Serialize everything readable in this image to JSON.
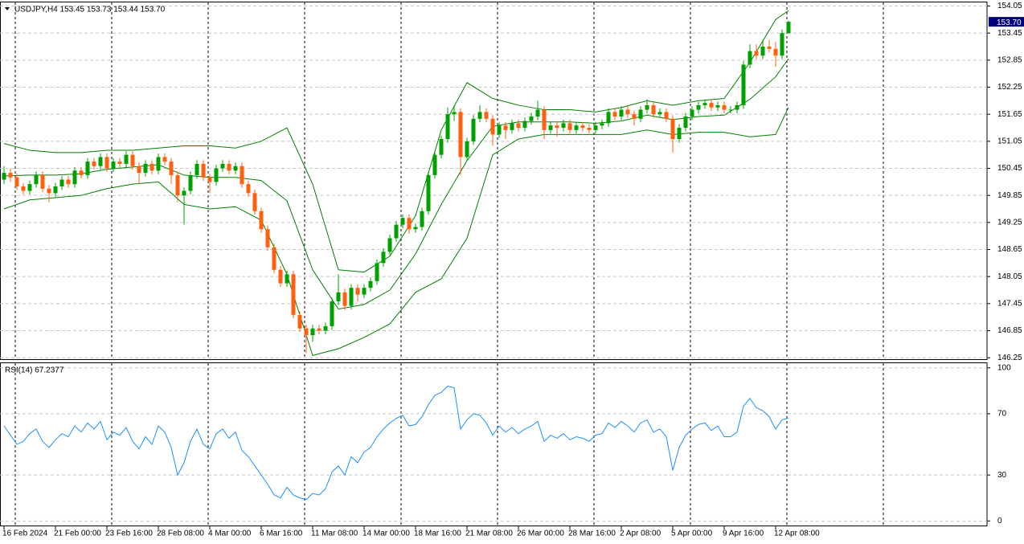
{
  "chart_data": [
    {
      "type": "candlestick",
      "title": "USDJPY,H4  153.45 153.73 153.44 153.70",
      "categories": [
        "16 Feb 2024",
        null,
        null,
        null,
        null,
        null,
        null,
        null,
        "21 Feb 00:00",
        null,
        null,
        null,
        null,
        null,
        null,
        null,
        "23 Feb 16:00",
        null,
        null,
        null,
        null,
        null,
        null,
        null,
        "28 Feb 08:00",
        null,
        null,
        null,
        null,
        null,
        null,
        null,
        "4 Mar 00:00",
        null,
        null,
        null,
        null,
        null,
        null,
        null,
        "6 Mar 16:00",
        null,
        null,
        null,
        null,
        null,
        null,
        null,
        "11 Mar 08:00",
        null,
        null,
        null,
        null,
        null,
        null,
        null,
        "14 Mar 00:00",
        null,
        null,
        null,
        null,
        null,
        null,
        null,
        "18 Mar 16:00",
        null,
        null,
        null,
        null,
        null,
        null,
        null,
        "21 Mar 08:00",
        null,
        null,
        null,
        null,
        null,
        null,
        null,
        "26 Mar 00:00",
        null,
        null,
        null,
        null,
        null,
        null,
        null,
        "28 Mar 16:00",
        null,
        null,
        null,
        null,
        null,
        null,
        null,
        "2 Apr 08:00",
        null,
        null,
        null,
        null,
        null,
        null,
        null,
        "5 Apr 00:00",
        null,
        null,
        null,
        null,
        null,
        null,
        null,
        "9 Apr 16:00",
        null,
        null,
        null,
        null,
        null,
        null,
        null,
        "12 Apr 08:00",
        null,
        null
      ],
      "ohlc": [
        [
          150.2,
          150.5,
          150.1,
          150.35
        ],
        [
          150.35,
          150.45,
          150.15,
          150.25
        ],
        [
          150.25,
          150.33,
          149.97,
          150.05
        ],
        [
          150.05,
          150.13,
          149.87,
          149.95
        ],
        [
          149.95,
          150.18,
          149.87,
          150.1
        ],
        [
          150.1,
          150.38,
          150.02,
          150.3
        ],
        [
          150.3,
          150.38,
          149.92,
          150.0
        ],
        [
          150.0,
          150.08,
          149.7,
          149.9
        ],
        [
          149.9,
          150.13,
          149.82,
          150.05
        ],
        [
          150.05,
          150.28,
          149.97,
          150.2
        ],
        [
          150.2,
          150.28,
          150.02,
          150.1
        ],
        [
          150.1,
          150.48,
          150.02,
          150.4
        ],
        [
          150.4,
          150.48,
          150.22,
          150.3
        ],
        [
          150.3,
          150.68,
          150.22,
          150.6
        ],
        [
          150.6,
          150.68,
          150.42,
          150.5
        ],
        [
          150.5,
          150.78,
          150.42,
          150.7
        ],
        [
          150.7,
          150.78,
          150.37,
          150.45
        ],
        [
          150.45,
          150.68,
          150.37,
          150.6
        ],
        [
          150.6,
          150.68,
          150.47,
          150.55
        ],
        [
          150.55,
          150.83,
          150.47,
          150.75
        ],
        [
          150.75,
          150.83,
          150.42,
          150.5
        ],
        [
          150.5,
          150.58,
          150.1,
          150.35
        ],
        [
          150.35,
          150.63,
          150.27,
          150.55
        ],
        [
          150.55,
          150.63,
          150.32,
          150.4
        ],
        [
          150.4,
          150.78,
          150.32,
          150.7
        ],
        [
          150.7,
          150.78,
          150.52,
          150.6
        ],
        [
          150.6,
          150.68,
          150.1,
          150.3
        ],
        [
          150.3,
          150.38,
          149.7,
          149.85
        ],
        [
          149.85,
          150.03,
          149.2,
          149.95
        ],
        [
          149.95,
          150.38,
          149.87,
          150.3
        ],
        [
          150.3,
          150.63,
          150.22,
          150.55
        ],
        [
          150.55,
          150.63,
          150.17,
          150.25
        ],
        [
          150.25,
          150.33,
          149.9,
          150.15
        ],
        [
          150.15,
          150.53,
          150.07,
          150.45
        ],
        [
          150.45,
          150.63,
          150.37,
          150.55
        ],
        [
          150.55,
          150.63,
          150.32,
          150.4
        ],
        [
          150.4,
          150.58,
          150.32,
          150.5
        ],
        [
          150.5,
          150.58,
          150.02,
          150.1
        ],
        [
          150.1,
          150.18,
          149.82,
          149.9
        ],
        [
          149.9,
          149.98,
          149.42,
          149.5
        ],
        [
          149.5,
          149.58,
          149.02,
          149.1
        ],
        [
          149.1,
          149.18,
          148.62,
          148.7
        ],
        [
          148.7,
          148.78,
          148.12,
          148.2
        ],
        [
          148.2,
          148.28,
          147.82,
          147.9
        ],
        [
          147.9,
          148.18,
          147.82,
          148.1
        ],
        [
          148.1,
          148.18,
          147.12,
          147.2
        ],
        [
          147.2,
          147.28,
          146.82,
          146.9
        ],
        [
          146.9,
          146.98,
          146.35,
          146.75
        ],
        [
          146.75,
          146.98,
          146.6,
          146.9
        ],
        [
          146.9,
          146.98,
          146.77,
          146.85
        ],
        [
          146.85,
          147.03,
          146.77,
          146.95
        ],
        [
          146.95,
          147.58,
          146.87,
          147.5
        ],
        [
          147.5,
          148.1,
          147.42,
          147.7
        ],
        [
          147.7,
          147.78,
          147.3,
          147.4
        ],
        [
          147.4,
          147.88,
          147.32,
          147.8
        ],
        [
          147.8,
          147.88,
          147.5,
          147.65
        ],
        [
          147.65,
          147.88,
          147.57,
          147.8
        ],
        [
          147.8,
          148.03,
          147.72,
          147.95
        ],
        [
          147.95,
          148.43,
          147.87,
          148.35
        ],
        [
          148.35,
          148.68,
          148.27,
          148.6
        ],
        [
          148.6,
          148.98,
          148.52,
          148.9
        ],
        [
          148.9,
          149.28,
          148.82,
          149.2
        ],
        [
          149.2,
          149.43,
          149.12,
          149.35
        ],
        [
          149.35,
          149.43,
          149.0,
          149.1
        ],
        [
          149.1,
          149.23,
          149.02,
          149.15
        ],
        [
          149.15,
          149.58,
          149.07,
          149.5
        ],
        [
          149.5,
          150.38,
          149.42,
          150.3
        ],
        [
          150.3,
          150.83,
          150.22,
          150.75
        ],
        [
          150.75,
          151.18,
          150.67,
          151.1
        ],
        [
          151.1,
          151.8,
          151.02,
          151.65
        ],
        [
          151.65,
          151.85,
          151.5,
          151.7
        ],
        [
          151.7,
          151.78,
          150.3,
          150.7
        ],
        [
          150.7,
          151.13,
          150.62,
          151.05
        ],
        [
          151.05,
          151.63,
          150.97,
          151.55
        ],
        [
          151.55,
          151.85,
          151.47,
          151.7
        ],
        [
          151.7,
          151.78,
          151.47,
          151.55
        ],
        [
          151.55,
          151.63,
          150.95,
          151.2
        ],
        [
          151.2,
          151.48,
          151.12,
          151.4
        ],
        [
          151.4,
          151.48,
          151.1,
          151.3
        ],
        [
          151.3,
          151.53,
          151.22,
          151.45
        ],
        [
          151.45,
          151.53,
          151.27,
          151.35
        ],
        [
          151.35,
          151.58,
          151.27,
          151.5
        ],
        [
          151.5,
          151.68,
          151.42,
          151.6
        ],
        [
          151.6,
          151.95,
          151.52,
          151.75
        ],
        [
          151.75,
          151.83,
          151.1,
          151.3
        ],
        [
          151.3,
          151.48,
          151.22,
          151.4
        ],
        [
          151.4,
          151.48,
          151.15,
          151.35
        ],
        [
          151.35,
          151.53,
          151.27,
          151.45
        ],
        [
          151.45,
          151.53,
          151.22,
          151.3
        ],
        [
          151.3,
          151.48,
          151.22,
          151.4
        ],
        [
          151.4,
          151.48,
          151.27,
          151.35
        ],
        [
          151.35,
          151.43,
          151.22,
          151.3
        ],
        [
          151.3,
          151.48,
          151.22,
          151.4
        ],
        [
          151.4,
          151.53,
          151.32,
          151.45
        ],
        [
          151.45,
          151.78,
          151.37,
          151.7
        ],
        [
          151.7,
          151.78,
          151.52,
          151.6
        ],
        [
          151.6,
          151.83,
          151.52,
          151.75
        ],
        [
          151.75,
          151.83,
          151.57,
          151.65
        ],
        [
          151.65,
          151.73,
          151.4,
          151.55
        ],
        [
          151.55,
          151.83,
          151.47,
          151.75
        ],
        [
          151.75,
          151.98,
          151.67,
          151.85
        ],
        [
          151.85,
          151.93,
          151.57,
          151.65
        ],
        [
          151.65,
          151.78,
          151.57,
          151.7
        ],
        [
          151.7,
          151.78,
          151.47,
          151.55
        ],
        [
          151.55,
          151.63,
          150.8,
          151.1
        ],
        [
          151.1,
          151.43,
          151.02,
          151.35
        ],
        [
          151.35,
          151.68,
          151.27,
          151.6
        ],
        [
          151.6,
          151.83,
          151.52,
          151.75
        ],
        [
          151.75,
          151.93,
          151.67,
          151.85
        ],
        [
          151.85,
          151.98,
          151.77,
          151.9
        ],
        [
          151.9,
          151.98,
          151.72,
          151.8
        ],
        [
          151.8,
          151.93,
          151.72,
          151.85
        ],
        [
          151.85,
          151.93,
          151.67,
          151.75
        ],
        [
          151.75,
          151.83,
          151.67,
          151.75
        ],
        [
          151.75,
          151.93,
          151.67,
          151.85
        ],
        [
          151.85,
          152.83,
          151.77,
          152.75
        ],
        [
          152.75,
          153.2,
          152.67,
          153.05
        ],
        [
          153.05,
          153.2,
          152.87,
          152.95
        ],
        [
          152.95,
          153.3,
          152.87,
          153.15
        ],
        [
          153.15,
          153.3,
          153.02,
          153.1
        ],
        [
          153.1,
          153.25,
          152.7,
          152.95
        ],
        [
          152.95,
          153.53,
          152.87,
          153.45
        ],
        [
          153.45,
          153.73,
          153.44,
          153.7
        ]
      ],
      "up_color": "#00a000",
      "down_color": "#ff6010",
      "overlay": {
        "type": "line",
        "x": [
          0,
          4,
          8,
          12,
          16,
          20,
          24,
          28,
          32,
          36,
          40,
          44,
          48,
          52,
          56,
          60,
          64,
          68,
          72,
          76,
          80,
          84,
          88,
          92,
          96,
          100,
          104,
          108,
          112,
          116,
          120,
          122
        ],
        "series": [
          {
            "color": "#008000",
            "values": [
              151.0,
              150.85,
              150.8,
              150.8,
              150.85,
              150.85,
              150.9,
              150.95,
              150.95,
              150.9,
              151.05,
              151.35,
              150.1,
              148.2,
              148.15,
              148.5,
              149.4,
              151.3,
              152.35,
              152.0,
              151.85,
              151.75,
              151.75,
              151.7,
              151.8,
              151.95,
              151.85,
              151.95,
              152.0,
              152.8,
              153.75,
              153.95
            ]
          },
          {
            "color": "#008000",
            "values": [
              150.28,
              150.3,
              150.3,
              150.33,
              150.43,
              150.48,
              150.53,
              150.3,
              150.25,
              150.25,
              150.18,
              149.73,
              148.2,
              147.33,
              147.43,
              147.75,
              148.55,
              149.65,
              150.62,
              151.38,
              151.48,
              151.48,
              151.48,
              151.45,
              151.5,
              151.63,
              151.53,
              151.6,
              151.63,
              151.98,
              152.48,
              152.88
            ]
          },
          {
            "color": "#008000",
            "values": [
              149.55,
              149.75,
              149.8,
              149.85,
              150.0,
              150.1,
              150.15,
              149.65,
              149.55,
              149.6,
              149.3,
              148.1,
              146.3,
              146.45,
              146.7,
              147.0,
              147.7,
              148.0,
              148.9,
              150.75,
              151.1,
              151.2,
              151.2,
              151.2,
              151.2,
              151.3,
              151.2,
              151.25,
              151.25,
              151.15,
              151.2,
              151.8
            ]
          }
        ]
      },
      "last_price": {
        "value": 153.7,
        "label": "153.70"
      },
      "ylim": [
        146.2,
        154.13
      ],
      "yticks": [
        154.05,
        153.45,
        152.85,
        152.25,
        151.65,
        151.05,
        150.45,
        149.85,
        149.25,
        148.65,
        148.05,
        147.45,
        146.85,
        146.25
      ],
      "grid": true
    },
    {
      "type": "line",
      "title": "RSI(14) 67.2377",
      "color": "#1e90ff",
      "values": [
        62,
        56,
        50,
        52,
        57,
        60,
        52,
        48,
        53,
        57,
        55,
        62,
        58,
        64,
        60,
        65,
        53,
        58,
        56,
        61,
        52,
        47,
        55,
        50,
        62,
        58,
        48,
        30,
        38,
        52,
        60,
        50,
        47,
        57,
        60,
        54,
        58,
        46,
        42,
        36,
        30,
        24,
        17,
        15,
        22,
        17,
        15,
        14,
        18,
        17,
        21,
        32,
        36,
        30,
        42,
        38,
        45,
        48,
        55,
        60,
        64,
        67,
        69,
        62,
        63,
        68,
        76,
        82,
        84,
        88,
        87,
        60,
        66,
        70,
        69,
        64,
        56,
        62,
        58,
        61,
        57,
        60,
        62,
        65,
        52,
        56,
        54,
        57,
        53,
        55,
        54,
        52,
        56,
        57,
        64,
        61,
        65,
        62,
        58,
        64,
        66,
        58,
        60,
        55,
        33,
        48,
        56,
        60,
        63,
        64,
        59,
        62,
        55,
        55,
        58,
        75,
        80,
        74,
        72,
        68,
        60,
        66,
        67.2377
      ],
      "ylim": [
        -3.5,
        103
      ],
      "yticks": [
        100,
        70,
        30,
        0
      ],
      "grid": true
    }
  ]
}
